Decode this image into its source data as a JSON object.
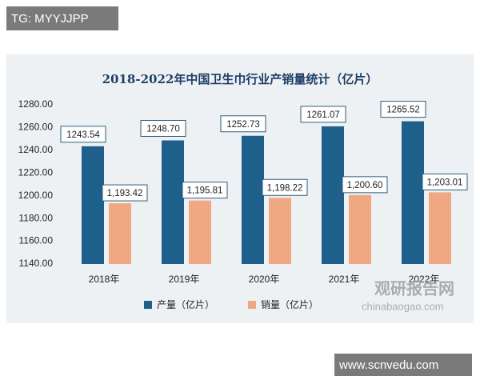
{
  "chart_data": {
    "type": "bar",
    "title": "2018-2022年中国卫生巾行业产销量统计（亿片）",
    "categories": [
      "2018年",
      "2019年",
      "2020年",
      "2021年",
      "2022年"
    ],
    "series": [
      {
        "name": "产量（亿片）",
        "color": "#1f5f8b",
        "values": [
          1243.54,
          1248.7,
          1252.73,
          1261.07,
          1265.52
        ],
        "value_labels": [
          "1243.54",
          "1248.70",
          "1252.73",
          "1261.07",
          "1265.52"
        ]
      },
      {
        "name": "销量（亿片）",
        "color": "#f0a882",
        "values": [
          1193.42,
          1195.81,
          1198.22,
          1200.6,
          1203.01
        ],
        "value_labels": [
          "1,193.42",
          "1,195.81",
          "1,198.22",
          "1,200.60",
          "1,203.01"
        ]
      }
    ],
    "ylim": [
      1140,
      1280
    ],
    "yticks": [
      {
        "value": 1140,
        "label": "1140.00"
      },
      {
        "value": 1160,
        "label": "1160.00"
      },
      {
        "value": 1180,
        "label": "1180.00"
      },
      {
        "value": 1200,
        "label": "1200.00"
      },
      {
        "value": 1220,
        "label": "1220.00"
      },
      {
        "value": 1240,
        "label": "1240.00"
      },
      {
        "value": 1260,
        "label": "1260.00"
      },
      {
        "value": 1280,
        "label": "1280.00"
      }
    ],
    "grid": false,
    "annotations": [
      "TG: MYYJJPP",
      "www.scnvedu.com",
      "观研报告网",
      "chinabaogao.com"
    ]
  }
}
